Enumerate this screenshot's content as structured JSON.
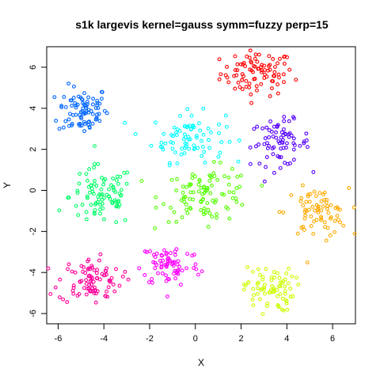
{
  "chart_data": {
    "type": "scatter",
    "title": "s1k largevis kernel=gauss symm=fuzzy perp=15",
    "xlabel": "X",
    "ylabel": "Y",
    "xlim": [
      -6.5,
      7.0
    ],
    "ylim": [
      -6.5,
      7.0
    ],
    "x_ticks": [
      -6,
      -4,
      -2,
      0,
      2,
      4,
      6
    ],
    "y_ticks": [
      -6,
      -4,
      -2,
      0,
      2,
      4,
      6
    ],
    "grid": false,
    "legend": "none",
    "clusters": [
      {
        "color": "#FF0000",
        "center": [
          2.7,
          5.7
        ],
        "spread": [
          0.8,
          0.55
        ],
        "n": 90
      },
      {
        "color": "#0066FF",
        "center": [
          -4.9,
          3.9
        ],
        "spread": [
          0.55,
          0.6
        ],
        "n": 85
      },
      {
        "color": "#00FFFF",
        "center": [
          -0.3,
          2.6
        ],
        "spread": [
          0.8,
          0.6
        ],
        "n": 80
      },
      {
        "color": "#5500FF",
        "center": [
          3.7,
          2.3
        ],
        "spread": [
          0.65,
          0.55
        ],
        "n": 75
      },
      {
        "color": "#00FF66",
        "center": [
          -4.1,
          -0.3
        ],
        "spread": [
          0.7,
          0.75
        ],
        "n": 90
      },
      {
        "color": "#55FF00",
        "center": [
          0.5,
          -0.2
        ],
        "spread": [
          1.0,
          0.65
        ],
        "n": 100
      },
      {
        "color": "#FFAA00",
        "center": [
          5.3,
          -1.1
        ],
        "spread": [
          0.7,
          0.6
        ],
        "n": 75
      },
      {
        "color": "#FF00FF",
        "center": [
          -1.1,
          -3.6
        ],
        "spread": [
          0.65,
          0.55
        ],
        "n": 75
      },
      {
        "color": "#FF0099",
        "center": [
          -4.6,
          -4.4
        ],
        "spread": [
          0.7,
          0.55
        ],
        "n": 90
      },
      {
        "color": "#CCFF00",
        "center": [
          3.2,
          -4.8
        ],
        "spread": [
          0.55,
          0.55
        ],
        "n": 75
      }
    ]
  }
}
